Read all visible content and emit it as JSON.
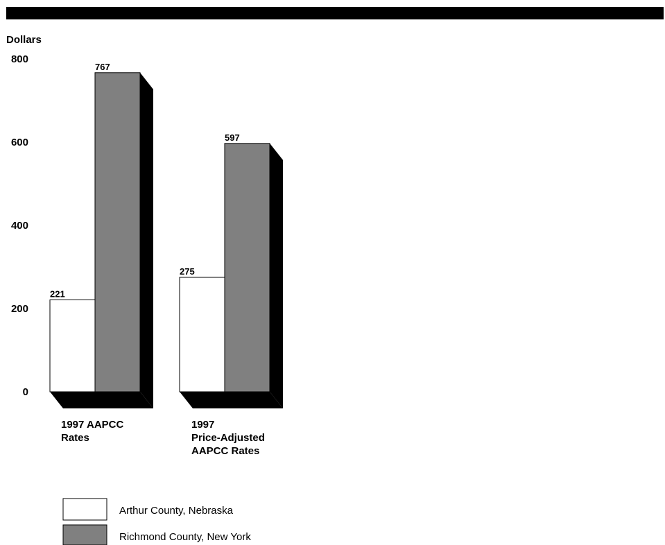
{
  "chart_data": {
    "type": "bar",
    "title": "",
    "ylabel": "Dollars",
    "xlabel": "",
    "ylim": [
      0,
      800
    ],
    "yticks": [
      0,
      200,
      400,
      600,
      800
    ],
    "categories": [
      [
        "1997 AAPCC",
        "Rates"
      ],
      [
        "1997",
        "Price-Adjusted",
        "AAPCC Rates"
      ]
    ],
    "series": [
      {
        "name": "Arthur County, Nebraska",
        "color": "#ffffff",
        "values": [
          221,
          275
        ]
      },
      {
        "name": "Richmond County, New York",
        "color": "#808080",
        "values": [
          767,
          597
        ]
      }
    ],
    "legend_position": "bottom-left",
    "grid": false
  }
}
